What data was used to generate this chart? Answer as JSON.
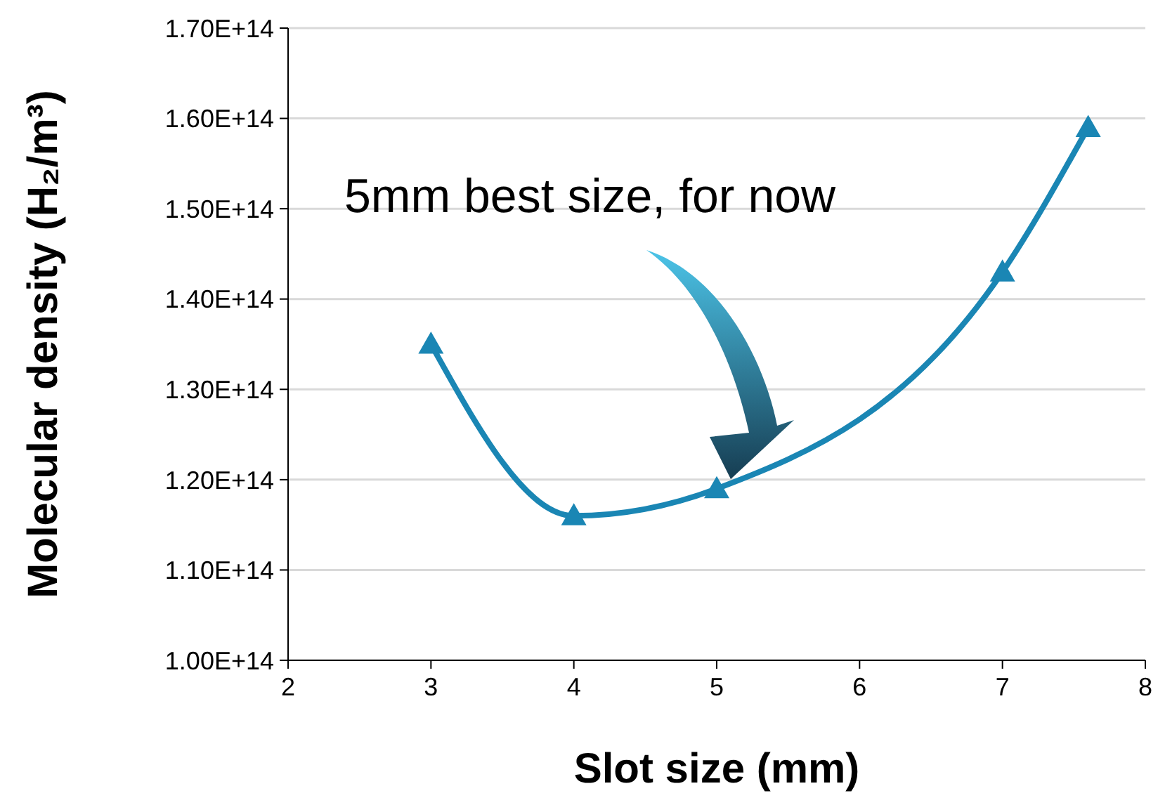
{
  "chart_data": {
    "type": "line",
    "xlabel": "Slot size (mm)",
    "ylabel": "Molecular density (H₂/m³)",
    "x": [
      3,
      4,
      5,
      7,
      7.6
    ],
    "series": [
      {
        "color": "#1a86b4",
        "values": [
          135000000000000.0,
          116000000000000.0,
          119000000000000.0,
          143000000000000.0,
          159000000000000.0
        ]
      }
    ],
    "xlim": [
      2,
      8
    ],
    "xticks": [
      2,
      3,
      4,
      5,
      6,
      7,
      8
    ],
    "ylim": [
      100000000000000.0,
      170000000000000.0
    ],
    "yticks": [
      {
        "value": 100000000000000.0,
        "label": "1.00E+14"
      },
      {
        "value": 110000000000000.0,
        "label": "1.10E+14"
      },
      {
        "value": 120000000000000.0,
        "label": "1.20E+14"
      },
      {
        "value": 130000000000000.0,
        "label": "1.30E+14"
      },
      {
        "value": 140000000000000.0,
        "label": "1.40E+14"
      },
      {
        "value": 150000000000000.0,
        "label": "1.50E+14"
      },
      {
        "value": 160000000000000.0,
        "label": "1.60E+14"
      },
      {
        "value": 170000000000000.0,
        "label": "1.70E+14"
      }
    ],
    "grid": "y",
    "marker": "triangle",
    "line_style": "solid",
    "annotations": [
      "5mm best size, for now"
    ]
  }
}
